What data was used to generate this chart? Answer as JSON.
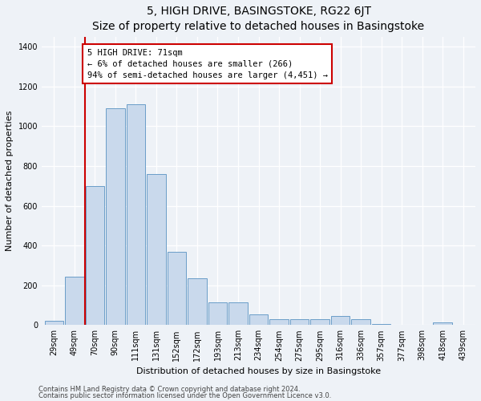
{
  "title": "5, HIGH DRIVE, BASINGSTOKE, RG22 6JT",
  "subtitle": "Size of property relative to detached houses in Basingstoke",
  "xlabel": "Distribution of detached houses by size in Basingstoke",
  "ylabel": "Number of detached properties",
  "footnote1": "Contains HM Land Registry data © Crown copyright and database right 2024.",
  "footnote2": "Contains public sector information licensed under the Open Government Licence v3.0.",
  "categories": [
    "29sqm",
    "49sqm",
    "70sqm",
    "90sqm",
    "111sqm",
    "131sqm",
    "152sqm",
    "172sqm",
    "193sqm",
    "213sqm",
    "234sqm",
    "254sqm",
    "275sqm",
    "295sqm",
    "316sqm",
    "336sqm",
    "357sqm",
    "377sqm",
    "398sqm",
    "418sqm",
    "439sqm"
  ],
  "values": [
    20,
    245,
    700,
    1090,
    1110,
    760,
    370,
    235,
    115,
    115,
    55,
    30,
    30,
    30,
    45,
    30,
    5,
    2,
    2,
    15,
    2
  ],
  "bar_color": "#c9d9ec",
  "bar_edge_color": "#6a9dc8",
  "ylim": [
    0,
    1450
  ],
  "yticks": [
    0,
    200,
    400,
    600,
    800,
    1000,
    1200,
    1400
  ],
  "property_label": "5 HIGH DRIVE: 71sqm",
  "annotation_line1": "← 6% of detached houses are smaller (266)",
  "annotation_line2": "94% of semi-detached houses are larger (4,451) →",
  "vline_color": "#cc0000",
  "annotation_box_color": "#ffffff",
  "annotation_box_edge_color": "#cc0000",
  "background_color": "#eef2f7",
  "title_fontsize": 10,
  "axis_label_fontsize": 8,
  "tick_fontsize": 7,
  "annotation_fontsize": 7.5,
  "footnote_fontsize": 6,
  "vline_xindex": 1.5
}
